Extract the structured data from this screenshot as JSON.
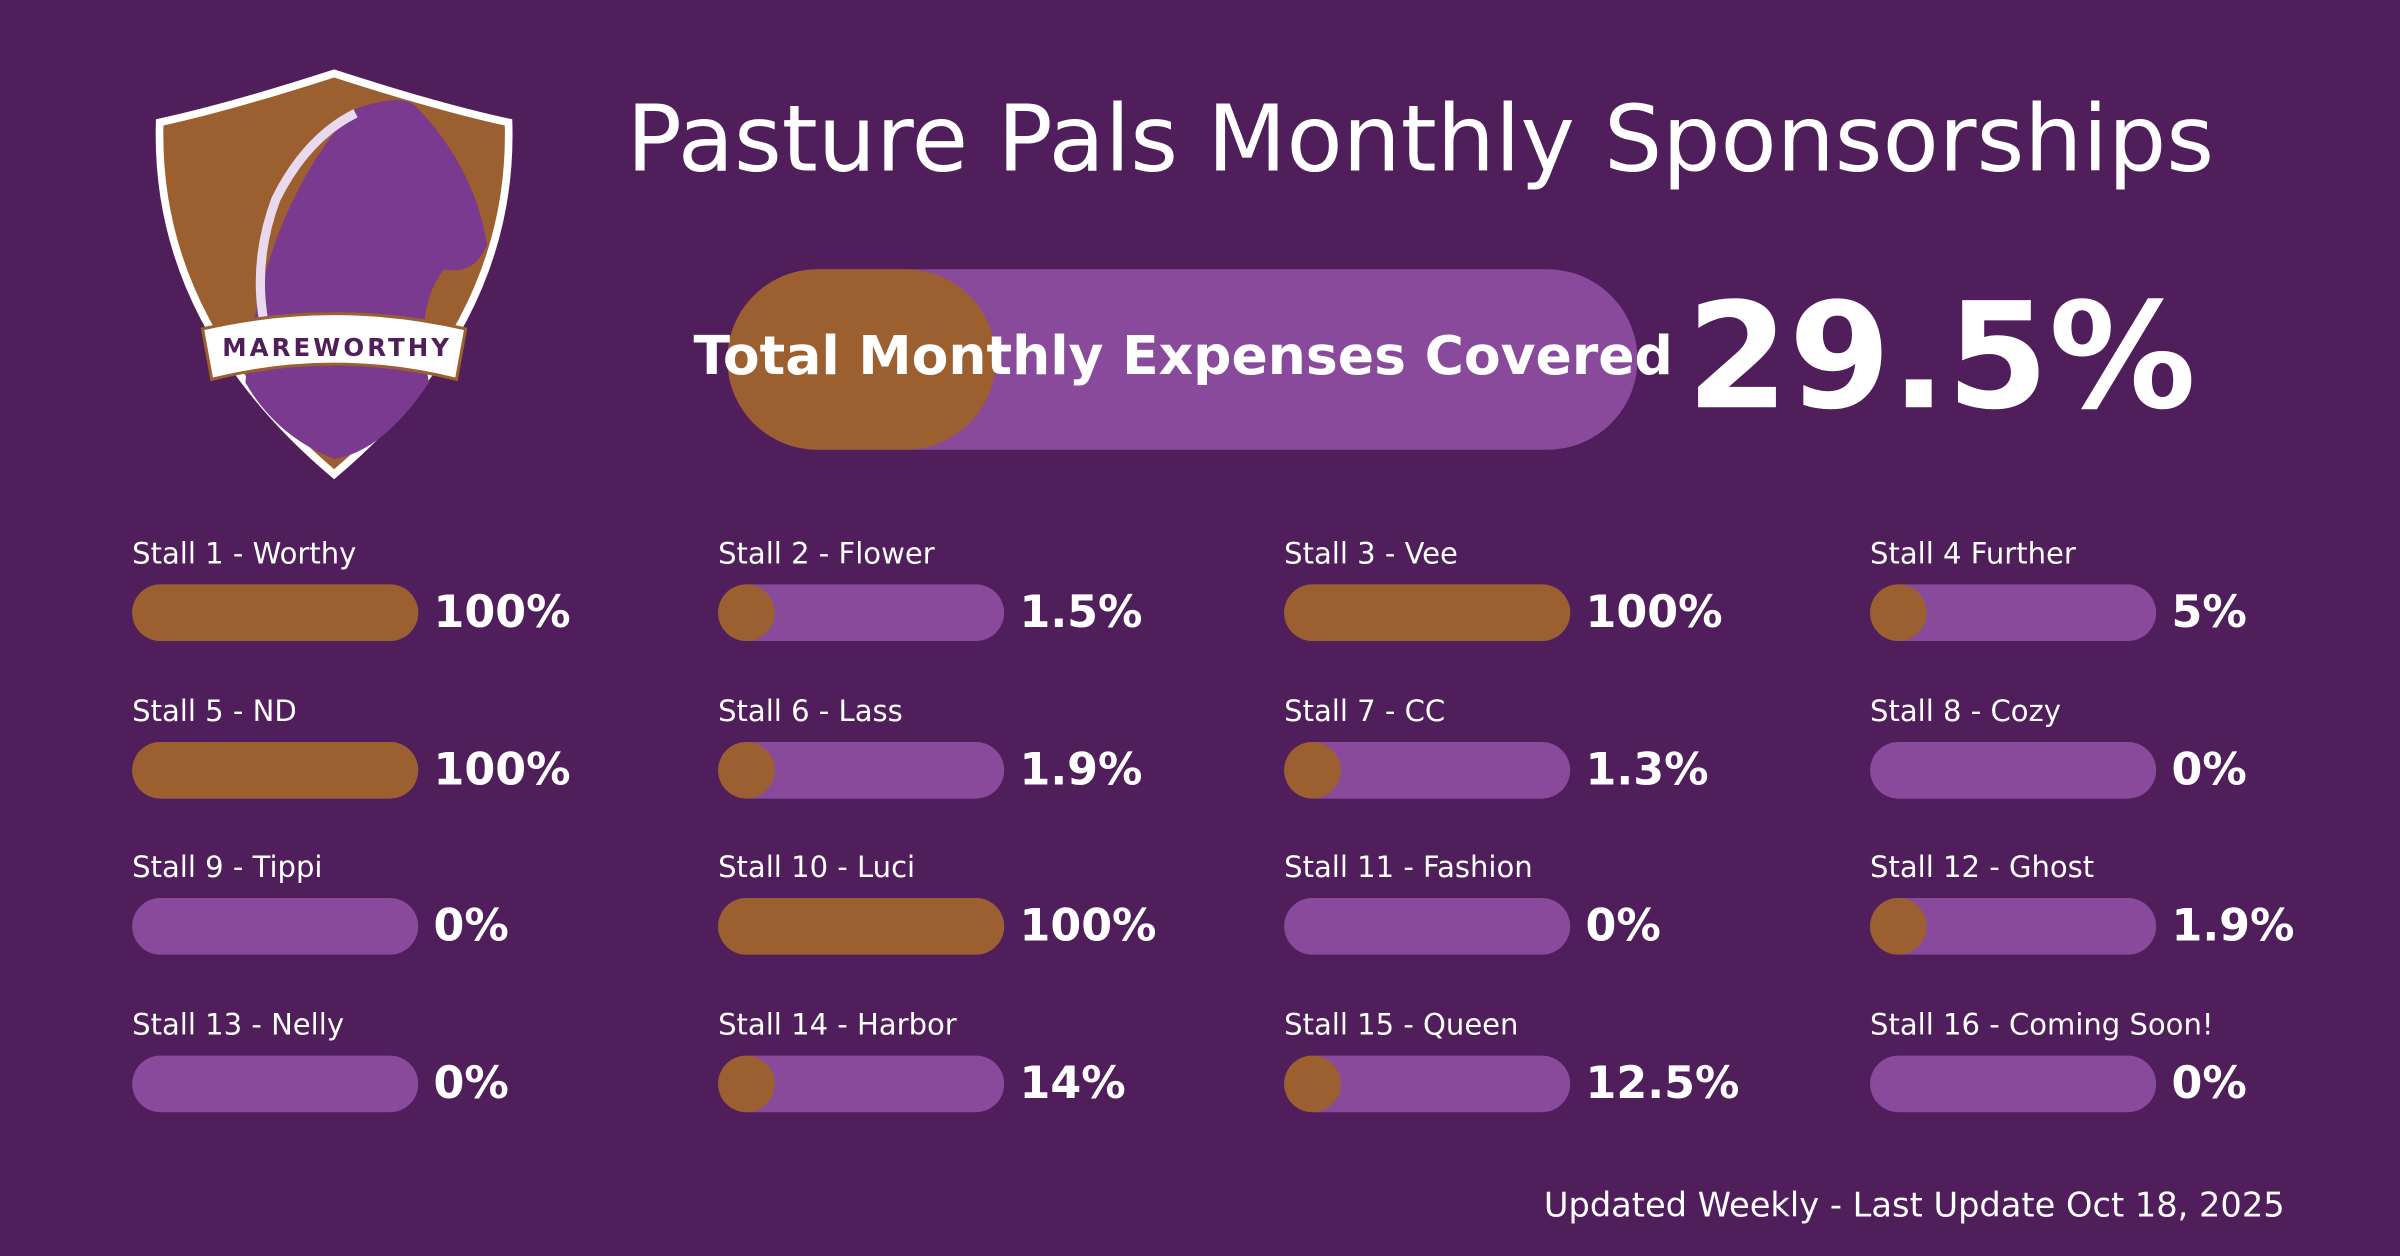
{
  "logo": {
    "text": "MAREWORTHY"
  },
  "chart_data": {
    "type": "progress",
    "title": "Pasture Pals Monthly Sponsorships",
    "total": {
      "label": "Total Monthly Expenses Covered",
      "value": 29.5,
      "value_label": "29.5%"
    },
    "categories": [
      "Stall 1 - Worthy",
      "Stall 2 - Flower",
      "Stall 3 - Vee",
      "Stall 4 Further",
      "Stall 5 - ND",
      "Stall 6 - Lass",
      "Stall 7 - CC",
      "Stall 8 - Cozy",
      "Stall 9 - Tippi",
      "Stall 10 - Luci",
      "Stall 11 - Fashion",
      "Stall 12 - Ghost",
      "Stall 13 - Nelly",
      "Stall 14 - Harbor",
      "Stall 15 - Queen",
      "Stall 16 - Coming Soon!"
    ],
    "values": [
      100,
      1.5,
      100,
      5,
      100,
      1.9,
      1.3,
      0,
      0,
      100,
      0,
      1.9,
      0,
      14,
      12.5,
      0
    ],
    "value_labels": [
      "100%",
      "1.5%",
      "100%",
      "5%",
      "100%",
      "1.9%",
      "1.3%",
      "0%",
      "0%",
      "100%",
      "0%",
      "1.9%",
      "0%",
      "14%",
      "12.5%",
      "0%"
    ],
    "xlim": [
      0,
      100
    ],
    "color": "#9c5f2f",
    "track_color": "#8a4a9c",
    "footer": "Updated Weekly - Last Update Oct 18, 2025"
  }
}
